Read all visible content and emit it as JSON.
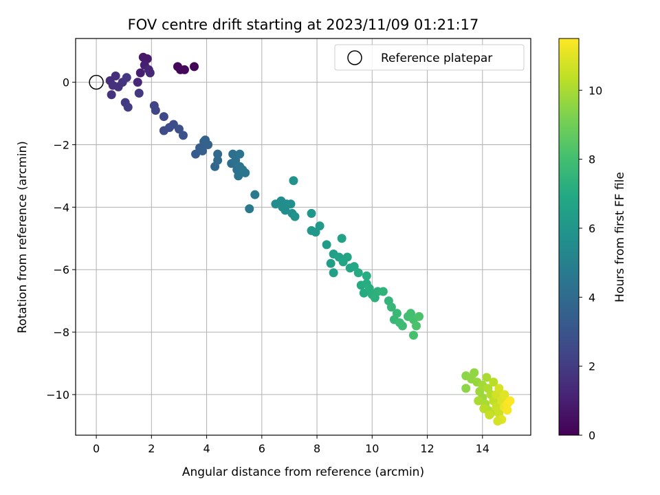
{
  "chart_data": {
    "type": "scatter",
    "title": "FOV centre drift starting at 2023/11/09 01:21:17",
    "xlabel": "Angular distance from reference (arcmin)",
    "ylabel": "Rotation from reference (arcmin)",
    "xlim": [
      -0.75,
      15.75
    ],
    "ylim": [
      -11.3,
      1.4
    ],
    "xticks": [
      0,
      2,
      4,
      6,
      8,
      10,
      12,
      14
    ],
    "yticks": [
      0,
      -2,
      -4,
      -6,
      -8,
      -10
    ],
    "grid": true,
    "legend": {
      "position": "top-right",
      "entries": [
        "Reference platepar"
      ]
    },
    "reference_point": {
      "x": 0,
      "y": 0
    },
    "colorbar": {
      "label": "Hours from first FF file",
      "min": 0,
      "max": 11.5,
      "ticks": [
        0,
        2,
        4,
        6,
        8,
        10
      ],
      "colormap": "viridis"
    },
    "series": [
      {
        "columns": [
          "x",
          "y",
          "hours"
        ],
        "points": [
          [
            0.5,
            0.05,
            1.5
          ],
          [
            0.6,
            -0.1,
            1.6
          ],
          [
            0.55,
            -0.4,
            1.7
          ],
          [
            0.7,
            0.2,
            1.5
          ],
          [
            0.8,
            -0.15,
            1.6
          ],
          [
            0.95,
            0.0,
            1.7
          ],
          [
            1.1,
            0.15,
            1.8
          ],
          [
            1.05,
            -0.65,
            1.9
          ],
          [
            1.15,
            -0.8,
            2.0
          ],
          [
            1.5,
            0.0,
            1.3
          ],
          [
            1.6,
            0.3,
            1.0
          ],
          [
            1.7,
            0.8,
            0.8
          ],
          [
            1.85,
            0.75,
            0.8
          ],
          [
            1.75,
            0.55,
            1.0
          ],
          [
            1.9,
            0.4,
            1.2
          ],
          [
            1.95,
            0.3,
            1.3
          ],
          [
            1.55,
            -0.35,
            1.9
          ],
          [
            2.1,
            -0.75,
            2.3
          ],
          [
            2.15,
            -0.9,
            2.4
          ],
          [
            2.45,
            -1.1,
            2.5
          ],
          [
            2.45,
            -1.55,
            2.6
          ],
          [
            2.65,
            -1.45,
            2.7
          ],
          [
            2.8,
            -1.35,
            2.7
          ],
          [
            3.0,
            -1.5,
            2.8
          ],
          [
            3.15,
            -1.7,
            2.9
          ],
          [
            2.95,
            0.5,
            0.2
          ],
          [
            3.05,
            0.4,
            0.2
          ],
          [
            3.2,
            0.4,
            0.2
          ],
          [
            3.55,
            0.5,
            0.1
          ],
          [
            3.6,
            -2.3,
            3.3
          ],
          [
            3.75,
            -2.1,
            3.4
          ],
          [
            3.85,
            -2.2,
            3.5
          ],
          [
            3.9,
            -1.9,
            3.5
          ],
          [
            4.05,
            -2.0,
            3.6
          ],
          [
            3.95,
            -1.85,
            3.6
          ],
          [
            4.3,
            -2.7,
            3.8
          ],
          [
            4.4,
            -2.5,
            3.9
          ],
          [
            4.4,
            -2.3,
            3.9
          ],
          [
            4.9,
            -2.6,
            4.1
          ],
          [
            4.95,
            -2.3,
            4.2
          ],
          [
            5.05,
            -2.5,
            4.3
          ],
          [
            5.1,
            -2.8,
            4.3
          ],
          [
            5.2,
            -2.7,
            4.4
          ],
          [
            5.15,
            -3.0,
            4.4
          ],
          [
            5.3,
            -2.8,
            4.5
          ],
          [
            5.4,
            -2.9,
            4.5
          ],
          [
            5.2,
            -2.3,
            4.4
          ],
          [
            5.55,
            -4.05,
            4.6
          ],
          [
            5.75,
            -3.6,
            4.7
          ],
          [
            6.5,
            -3.9,
            5.5
          ],
          [
            6.7,
            -3.8,
            5.5
          ],
          [
            6.75,
            -4.0,
            5.6
          ],
          [
            6.85,
            -4.1,
            5.6
          ],
          [
            6.9,
            -3.9,
            5.6
          ],
          [
            7.05,
            -3.9,
            5.7
          ],
          [
            7.1,
            -4.2,
            5.7
          ],
          [
            7.2,
            -4.3,
            5.8
          ],
          [
            7.15,
            -3.15,
            5.8
          ],
          [
            7.8,
            -4.2,
            6.0
          ],
          [
            7.8,
            -4.75,
            6.1
          ],
          [
            7.95,
            -4.8,
            6.1
          ],
          [
            8.1,
            -4.6,
            6.2
          ],
          [
            8.35,
            -5.2,
            6.3
          ],
          [
            8.5,
            -5.8,
            6.4
          ],
          [
            8.6,
            -5.5,
            6.5
          ],
          [
            8.6,
            -6.1,
            6.5
          ],
          [
            8.8,
            -5.6,
            6.6
          ],
          [
            8.9,
            -5.0,
            6.6
          ],
          [
            8.95,
            -5.75,
            6.7
          ],
          [
            9.1,
            -5.6,
            6.7
          ],
          [
            9.2,
            -5.95,
            6.8
          ],
          [
            9.35,
            -5.9,
            6.9
          ],
          [
            9.5,
            -6.1,
            7.0
          ],
          [
            9.6,
            -6.5,
            7.0
          ],
          [
            9.7,
            -6.75,
            7.0
          ],
          [
            9.8,
            -6.2,
            7.1
          ],
          [
            9.8,
            -6.45,
            7.1
          ],
          [
            9.9,
            -6.6,
            7.2
          ],
          [
            10.0,
            -6.8,
            7.2
          ],
          [
            10.1,
            -6.9,
            7.3
          ],
          [
            10.2,
            -6.7,
            7.3
          ],
          [
            10.4,
            -6.7,
            7.4
          ],
          [
            10.6,
            -7.0,
            7.5
          ],
          [
            10.7,
            -7.2,
            7.6
          ],
          [
            10.8,
            -7.6,
            7.6
          ],
          [
            10.9,
            -7.4,
            7.7
          ],
          [
            11.0,
            -7.7,
            7.8
          ],
          [
            11.1,
            -7.8,
            7.8
          ],
          [
            11.3,
            -7.5,
            7.9
          ],
          [
            11.4,
            -7.4,
            8.0
          ],
          [
            11.5,
            -7.6,
            8.1
          ],
          [
            11.5,
            -8.1,
            8.1
          ],
          [
            11.6,
            -7.8,
            8.2
          ],
          [
            11.7,
            -7.5,
            8.2
          ],
          [
            13.4,
            -9.4,
            9.5
          ],
          [
            13.4,
            -9.8,
            9.5
          ],
          [
            13.6,
            -9.5,
            9.6
          ],
          [
            13.7,
            -9.3,
            9.6
          ],
          [
            13.8,
            -9.6,
            9.7
          ],
          [
            13.9,
            -9.9,
            9.8
          ],
          [
            14.0,
            -10.1,
            9.8
          ],
          [
            14.0,
            -9.7,
            9.9
          ],
          [
            14.1,
            -10.3,
            10.0
          ],
          [
            14.2,
            -10.5,
            10.1
          ],
          [
            14.2,
            -9.8,
            10.1
          ],
          [
            14.3,
            -10.0,
            10.2
          ],
          [
            14.3,
            -10.6,
            10.3
          ],
          [
            14.4,
            -10.2,
            10.4
          ],
          [
            14.4,
            -9.6,
            10.3
          ],
          [
            14.5,
            -10.4,
            10.6
          ],
          [
            14.5,
            -10.0,
            10.7
          ],
          [
            14.6,
            -9.8,
            10.8
          ],
          [
            14.6,
            -10.6,
            10.6
          ],
          [
            14.7,
            -10.2,
            10.9
          ],
          [
            14.7,
            -10.8,
            11.0
          ],
          [
            14.8,
            -10.0,
            11.0
          ],
          [
            14.8,
            -10.4,
            11.2
          ],
          [
            14.9,
            -10.3,
            11.4
          ],
          [
            14.9,
            -10.5,
            11.4
          ],
          [
            15.0,
            -10.2,
            11.5
          ],
          [
            13.85,
            -10.2,
            10.0
          ],
          [
            14.05,
            -10.45,
            10.3
          ],
          [
            14.25,
            -10.65,
            10.5
          ],
          [
            14.15,
            -9.45,
            10.0
          ],
          [
            14.55,
            -10.85,
            10.8
          ]
        ]
      }
    ]
  }
}
